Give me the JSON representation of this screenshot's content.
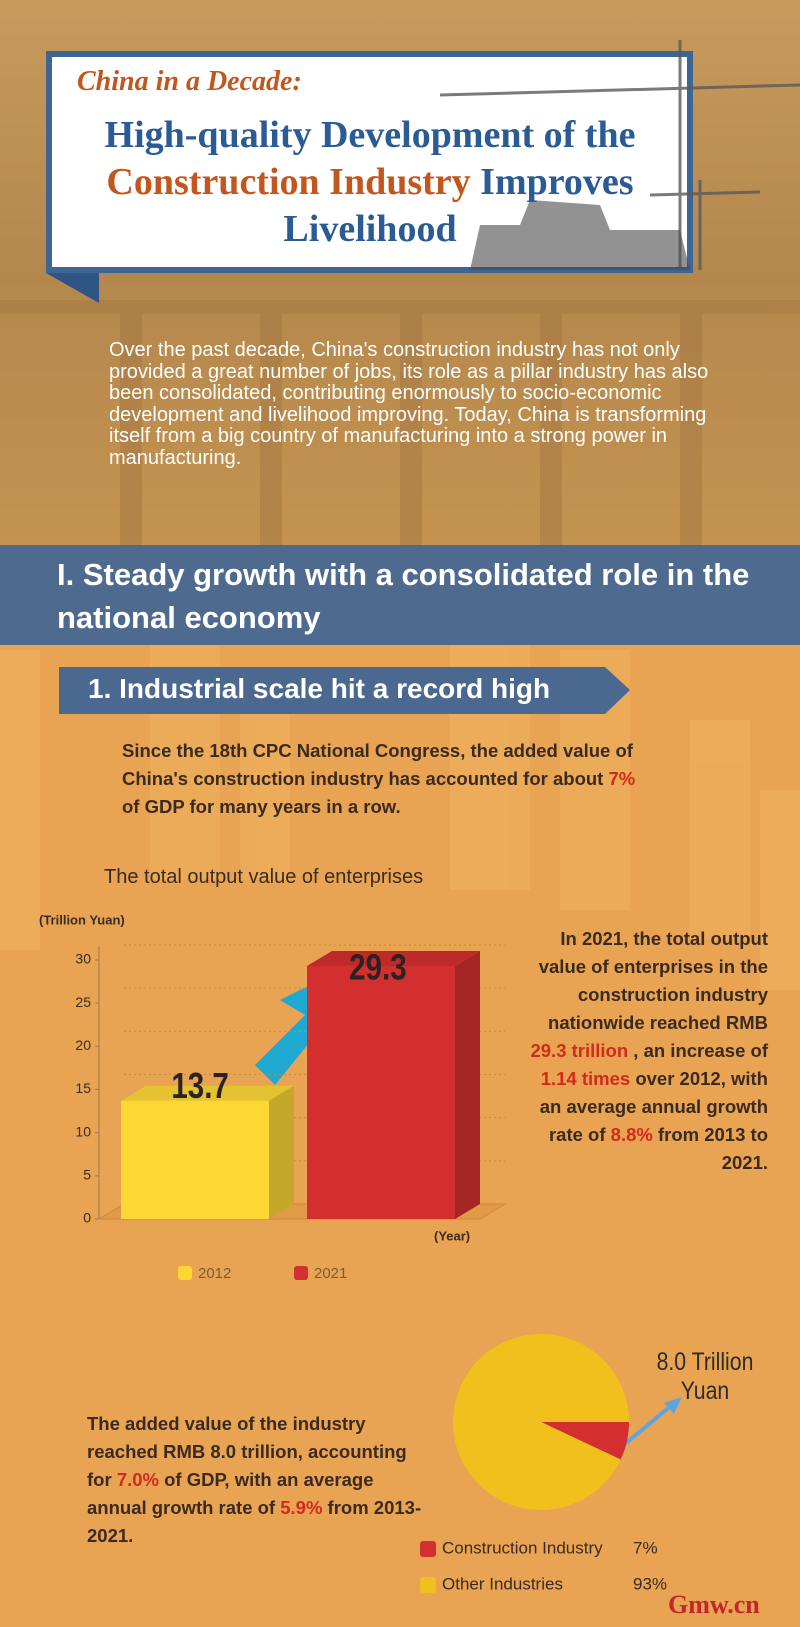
{
  "header": {
    "kicker": "China in a Decade:",
    "title": [
      {
        "text": "High-quality Development of the",
        "emphasis": false
      },
      {
        "text": "Construction Industry",
        "emphasis": true
      },
      {
        "text": "Improves Livelihood",
        "emphasis": false
      }
    ]
  },
  "intro": "Over the past decade, China's construction industry has not only provided a great number of jobs, its role as a pillar industry has also been consolidated, contributing enormously to socio-economic development and livelihood improving. Today, China is transforming itself from a big country of manufacturing into a strong power in manufacturing.",
  "section": {
    "title": "I. Steady growth with a consolidated role in the national economy"
  },
  "subsection": {
    "title": "1. Industrial scale hit a record high"
  },
  "paragraphs": {
    "gdp_share": [
      {
        "text": "Since the 18th CPC National Congress, the added value of China's construction industry has accounted for about ",
        "emphasis": false
      },
      {
        "text": "7%",
        "emphasis": true
      },
      {
        "text": " of GDP for many years in a row.",
        "emphasis": false
      }
    ],
    "output": [
      {
        "text": "In 2021, the total output value of enterprises in the construction industry nationwide reached RMB ",
        "emphasis": false
      },
      {
        "text": "29.3 trillion",
        "emphasis": true
      },
      {
        "text": ", an increase of ",
        "emphasis": false
      },
      {
        "text": "1.14 times",
        "emphasis": true
      },
      {
        "text": " over 2012, with an average annual growth rate of ",
        "emphasis": false
      },
      {
        "text": "8.8%",
        "emphasis": true
      },
      {
        "text": " from 2013 to 2021.",
        "emphasis": false
      }
    ],
    "added_value": [
      {
        "text": "The added value of the industry reached RMB 8.0 trillion, accounting for ",
        "emphasis": false
      },
      {
        "text": "7.0%",
        "emphasis": true
      },
      {
        "text": " of GDP, with an average annual growth rate of ",
        "emphasis": false
      },
      {
        "text": "5.9%",
        "emphasis": true
      },
      {
        "text": " from 2013-2021.",
        "emphasis": false
      }
    ]
  },
  "chart_data": [
    {
      "type": "bar",
      "title": "The total output value of enterprises",
      "y_label": "(Trillion Yuan)",
      "x_label": "(Year)",
      "categories": [
        "2012",
        "2021"
      ],
      "values": [
        13.7,
        29.3
      ],
      "colors": [
        "#fdd835",
        "#d32f2f"
      ],
      "ylim": [
        0,
        31.5
      ],
      "yticks": [
        0,
        5,
        10,
        15,
        20,
        25,
        30
      ],
      "grid": true
    },
    {
      "type": "pie",
      "categories": [
        "Construction Industry",
        "Other Industries"
      ],
      "values": [
        7,
        93
      ],
      "value_labels": [
        "7%",
        "93%"
      ],
      "colors": [
        "#d32f2f",
        "#f2c01d"
      ],
      "annotation": "8.0 Trillion Yuan"
    }
  ],
  "logo": "Gmw.cn"
}
